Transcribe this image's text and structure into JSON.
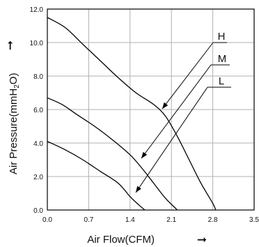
{
  "chart_data": {
    "type": "line",
    "xlabel": "Air Flow(CFM)",
    "ylabel_main": "Air Pressure(mmH",
    "ylabel_sub": "2",
    "ylabel_end": "O)",
    "xlim": [
      0,
      3.5
    ],
    "ylim": [
      0,
      12
    ],
    "xticks": [
      "0.0",
      "0.7",
      "1.4",
      "2.1",
      "2.8",
      "3.5"
    ],
    "yticks": [
      "0.0",
      "2.0",
      "4.0",
      "6.0",
      "8.0",
      "10.0",
      "12.0"
    ],
    "grid": true,
    "series": [
      {
        "name": "H",
        "points": [
          [
            0,
            11.5
          ],
          [
            0.3,
            10.9
          ],
          [
            0.6,
            9.9
          ],
          [
            0.9,
            8.9
          ],
          [
            1.2,
            7.9
          ],
          [
            1.5,
            7.0
          ],
          [
            1.8,
            6.3
          ],
          [
            2.0,
            5.6
          ],
          [
            2.2,
            4.4
          ],
          [
            2.4,
            3.0
          ],
          [
            2.6,
            1.6
          ],
          [
            2.8,
            0.4
          ],
          [
            2.85,
            0
          ]
        ]
      },
      {
        "name": "M",
        "points": [
          [
            0,
            6.7
          ],
          [
            0.25,
            6.3
          ],
          [
            0.5,
            5.7
          ],
          [
            0.8,
            5.0
          ],
          [
            1.1,
            4.2
          ],
          [
            1.4,
            3.3
          ],
          [
            1.6,
            2.5
          ],
          [
            1.8,
            1.6
          ],
          [
            2.0,
            0.7
          ],
          [
            2.2,
            0
          ]
        ]
      },
      {
        "name": "L",
        "points": [
          [
            0,
            4.1
          ],
          [
            0.3,
            3.6
          ],
          [
            0.6,
            3.0
          ],
          [
            0.9,
            2.3
          ],
          [
            1.2,
            1.6
          ],
          [
            1.4,
            0.8
          ],
          [
            1.55,
            0.3
          ],
          [
            1.65,
            0
          ]
        ]
      }
    ]
  }
}
